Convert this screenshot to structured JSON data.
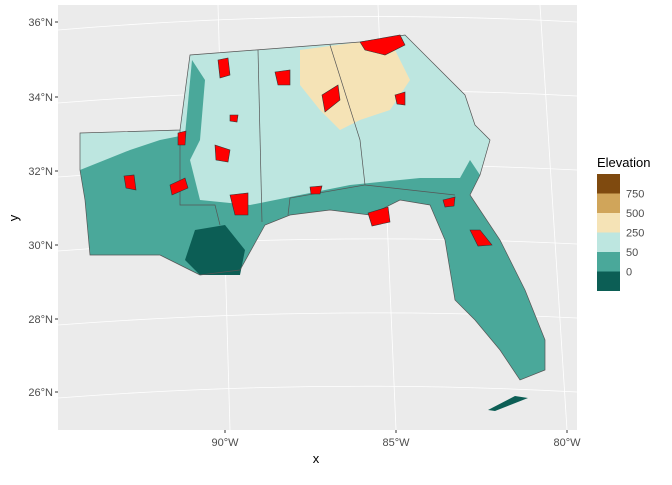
{
  "map": {
    "x_label": "x",
    "y_label": "y",
    "x_ticks": [
      "90°W",
      "85°W",
      "80°W"
    ],
    "y_ticks": [
      "36°N",
      "34°N",
      "32°N",
      "30°N",
      "28°N",
      "26°N"
    ],
    "legend": {
      "title": "Elevation",
      "labels": [
        "750",
        "500",
        "250",
        "50",
        "0"
      ],
      "colors": [
        "#7f4a0f",
        "#d0a55a",
        "#f5e3b6",
        "#bde6e0",
        "#4aa89a",
        "#0c5e55"
      ]
    }
  }
}
